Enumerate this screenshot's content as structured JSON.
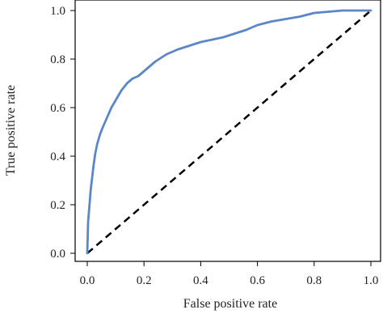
{
  "chart_data": {
    "type": "line",
    "title": "",
    "xlabel": "False positive rate",
    "ylabel": "True positive rate",
    "xlim": [
      0.0,
      1.0
    ],
    "ylim": [
      0.0,
      1.0
    ],
    "xticks": [
      "0.0",
      "0.2",
      "0.4",
      "0.6",
      "0.8",
      "1.0"
    ],
    "yticks": [
      "0.0",
      "0.2",
      "0.4",
      "0.6",
      "0.8",
      "1.0"
    ],
    "grid": false,
    "legend": "none",
    "series": [
      {
        "style": "solid",
        "color": "#5b87c8",
        "x": [
          0.0,
          0.003,
          0.008,
          0.012,
          0.017,
          0.022,
          0.028,
          0.035,
          0.045,
          0.055,
          0.07,
          0.085,
          0.1,
          0.12,
          0.14,
          0.16,
          0.18,
          0.2,
          0.24,
          0.28,
          0.32,
          0.36,
          0.4,
          0.44,
          0.48,
          0.52,
          0.56,
          0.6,
          0.65,
          0.7,
          0.75,
          0.8,
          0.85,
          0.9,
          0.95,
          1.0
        ],
        "y": [
          0.0,
          0.13,
          0.2,
          0.26,
          0.31,
          0.36,
          0.41,
          0.45,
          0.49,
          0.52,
          0.56,
          0.6,
          0.63,
          0.67,
          0.7,
          0.72,
          0.73,
          0.75,
          0.79,
          0.82,
          0.84,
          0.855,
          0.87,
          0.88,
          0.89,
          0.905,
          0.92,
          0.94,
          0.955,
          0.965,
          0.975,
          0.99,
          0.995,
          1.0,
          1.0,
          1.0
        ]
      },
      {
        "style": "dashed",
        "color": "#000000",
        "x": [
          0.0,
          1.0
        ],
        "y": [
          0.0,
          1.0
        ]
      }
    ]
  }
}
